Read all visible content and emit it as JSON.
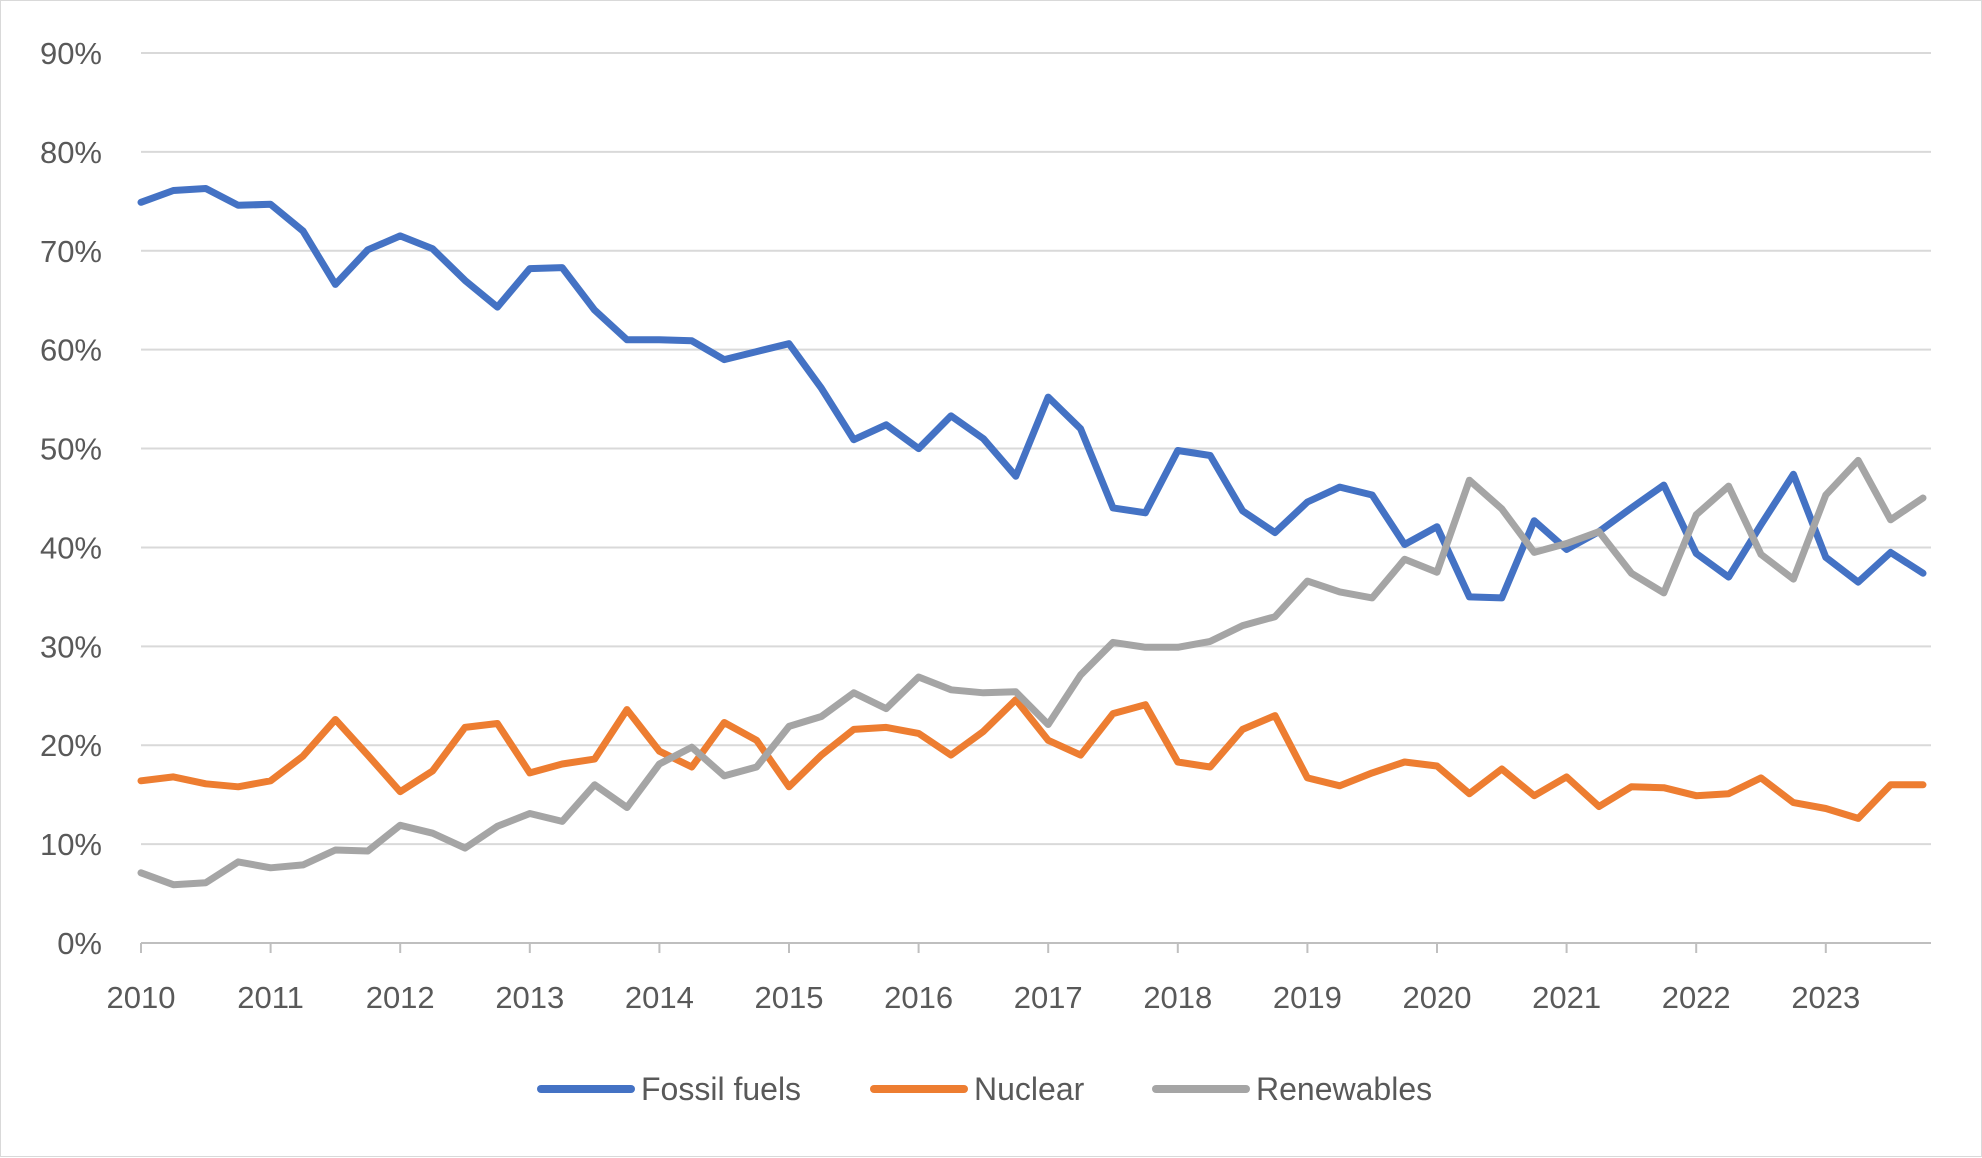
{
  "chart_data": {
    "type": "line",
    "title": "",
    "xlabel": "",
    "ylabel": "",
    "y_format": "percent",
    "ylim": [
      0,
      90
    ],
    "y_ticks": [
      0,
      10,
      20,
      30,
      40,
      50,
      60,
      70,
      80,
      90
    ],
    "y_tick_labels": [
      "0%",
      "10%",
      "20%",
      "30%",
      "40%",
      "50%",
      "60%",
      "70%",
      "80%",
      "90%"
    ],
    "x_ticks": [
      "2010",
      "2011",
      "2012",
      "2013",
      "2014",
      "2015",
      "2016",
      "2017",
      "2018",
      "2019",
      "2020",
      "2021",
      "2022",
      "2023"
    ],
    "x_start": "2010 Q1",
    "x_points_per_tick": 4,
    "x": [
      "2010 Q1",
      "2010 Q2",
      "2010 Q3",
      "2010 Q4",
      "2011 Q1",
      "2011 Q2",
      "2011 Q3",
      "2011 Q4",
      "2012 Q1",
      "2012 Q2",
      "2012 Q3",
      "2012 Q4",
      "2013 Q1",
      "2013 Q2",
      "2013 Q3",
      "2013 Q4",
      "2014 Q1",
      "2014 Q2",
      "2014 Q3",
      "2014 Q4",
      "2015 Q1",
      "2015 Q2",
      "2015 Q3",
      "2015 Q4",
      "2016 Q1",
      "2016 Q2",
      "2016 Q3",
      "2016 Q4",
      "2017 Q1",
      "2017 Q2",
      "2017 Q3",
      "2017 Q4",
      "2018 Q1",
      "2018 Q2",
      "2018 Q3",
      "2018 Q4",
      "2019 Q1",
      "2019 Q2",
      "2019 Q3",
      "2019 Q4",
      "2020 Q1",
      "2020 Q2",
      "2020 Q3",
      "2020 Q4",
      "2021 Q1",
      "2021 Q2",
      "2021 Q3",
      "2021 Q4",
      "2022 Q1",
      "2022 Q2",
      "2022 Q3",
      "2022 Q4",
      "2023 Q1",
      "2023 Q2",
      "2023 Q3",
      "2023 Q4"
    ],
    "grid": true,
    "legend": "bottom-center",
    "series": [
      {
        "name": "Fossil fuels",
        "color": "#4472C4",
        "values": [
          74.9,
          76.1,
          76.3,
          74.6,
          74.7,
          72.0,
          66.6,
          70.1,
          71.5,
          70.2,
          67.0,
          64.3,
          68.2,
          68.3,
          64.0,
          61.0,
          61.0,
          60.9,
          59.0,
          59.8,
          60.6,
          56.1,
          50.9,
          52.4,
          50.0,
          53.3,
          51.0,
          47.2,
          55.2,
          52.0,
          44.0,
          43.5,
          49.8,
          49.3,
          43.7,
          41.5,
          44.6,
          46.1,
          45.3,
          40.3,
          42.1,
          35.0,
          34.9,
          42.7,
          39.8,
          41.6,
          44.0,
          46.3,
          39.4,
          37.0,
          42.3,
          47.4,
          39.0,
          36.5,
          39.5,
          37.4
        ]
      },
      {
        "name": "Nuclear",
        "color": "#ED7D31",
        "values": [
          16.4,
          16.8,
          16.1,
          15.8,
          16.4,
          18.9,
          22.6,
          19.0,
          15.3,
          17.4,
          21.8,
          22.2,
          17.2,
          18.1,
          18.6,
          23.6,
          19.4,
          17.8,
          22.3,
          20.5,
          15.8,
          19.0,
          21.6,
          21.8,
          21.2,
          19.0,
          21.4,
          24.6,
          20.5,
          19.0,
          23.2,
          24.1,
          18.3,
          17.8,
          21.6,
          23.0,
          16.7,
          15.9,
          17.2,
          18.3,
          17.9,
          15.1,
          17.6,
          14.9,
          16.8,
          13.8,
          15.8,
          15.7,
          14.9,
          15.1,
          16.7,
          14.2,
          13.6,
          12.6,
          16.0,
          16.0
        ]
      },
      {
        "name": "Renewables",
        "color": "#A5A5A5",
        "values": [
          7.1,
          5.9,
          6.1,
          8.2,
          7.6,
          7.9,
          9.4,
          9.3,
          11.9,
          11.1,
          9.6,
          11.8,
          13.1,
          12.3,
          16.0,
          13.7,
          18.1,
          19.8,
          16.9,
          17.8,
          21.9,
          22.9,
          25.3,
          23.7,
          26.9,
          25.6,
          25.3,
          25.4,
          22.1,
          27.1,
          30.4,
          29.9,
          29.9,
          30.5,
          32.1,
          33.0,
          36.6,
          35.5,
          34.9,
          38.8,
          37.5,
          46.8,
          43.9,
          39.5,
          40.4,
          41.6,
          37.4,
          35.4,
          43.3,
          46.2,
          39.3,
          36.8,
          45.3,
          48.8,
          42.8,
          45.0
        ]
      }
    ]
  }
}
